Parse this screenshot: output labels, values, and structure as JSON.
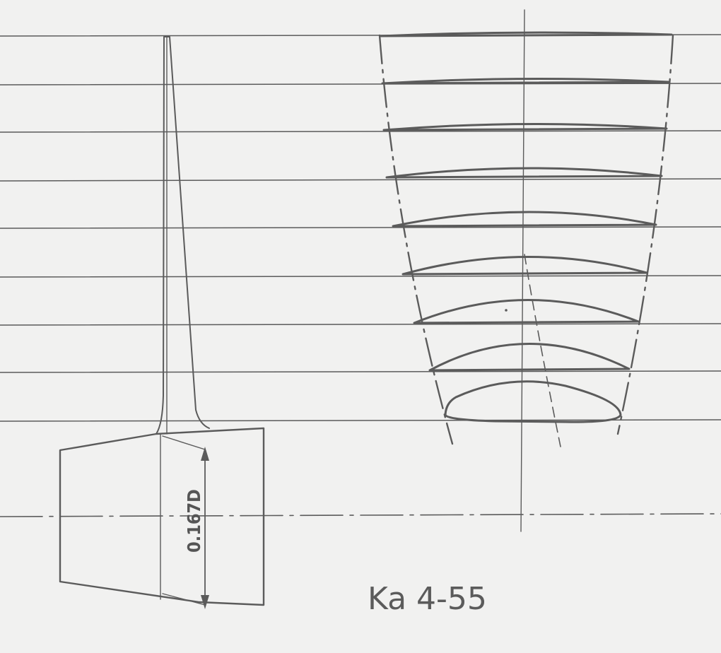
{
  "drawing": {
    "title": "Ka 4-55",
    "hub_dimension_label": "0.167D",
    "ink_color": "#5b5b5b",
    "paper_color": "#f1f1f0"
  }
}
